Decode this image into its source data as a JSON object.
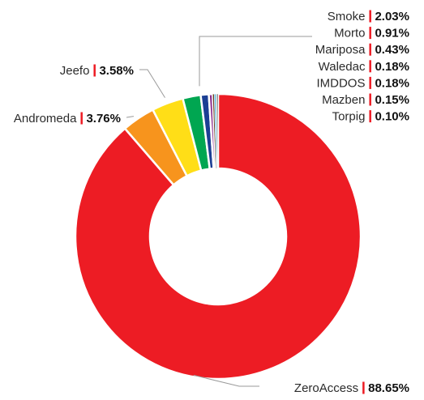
{
  "chart_data": {
    "type": "pie",
    "variant": "donut",
    "title": "",
    "categories": [
      "ZeroAccess",
      "Andromeda",
      "Jeefo",
      "Smoke",
      "Morto",
      "Mariposa",
      "Waledac",
      "IMDDOS",
      "Mazben",
      "Torpig"
    ],
    "values": [
      88.65,
      3.76,
      3.58,
      2.03,
      0.91,
      0.43,
      0.18,
      0.18,
      0.15,
      0.1
    ],
    "value_labels": [
      "88.65%",
      "3.76%",
      "3.58%",
      "2.03%",
      "0.91%",
      "0.43%",
      "0.18%",
      "0.18%",
      "0.15%",
      "0.10%"
    ],
    "colors": [
      "#ed1c24",
      "#f7941d",
      "#ffde17",
      "#00a651",
      "#1c3f94",
      "#8b2c8f",
      "#6f3a1e",
      "#5bc2e7",
      "#a7a9ac",
      "#231f20"
    ],
    "separator_color": "#ed1c24",
    "legend": "callout labels"
  }
}
